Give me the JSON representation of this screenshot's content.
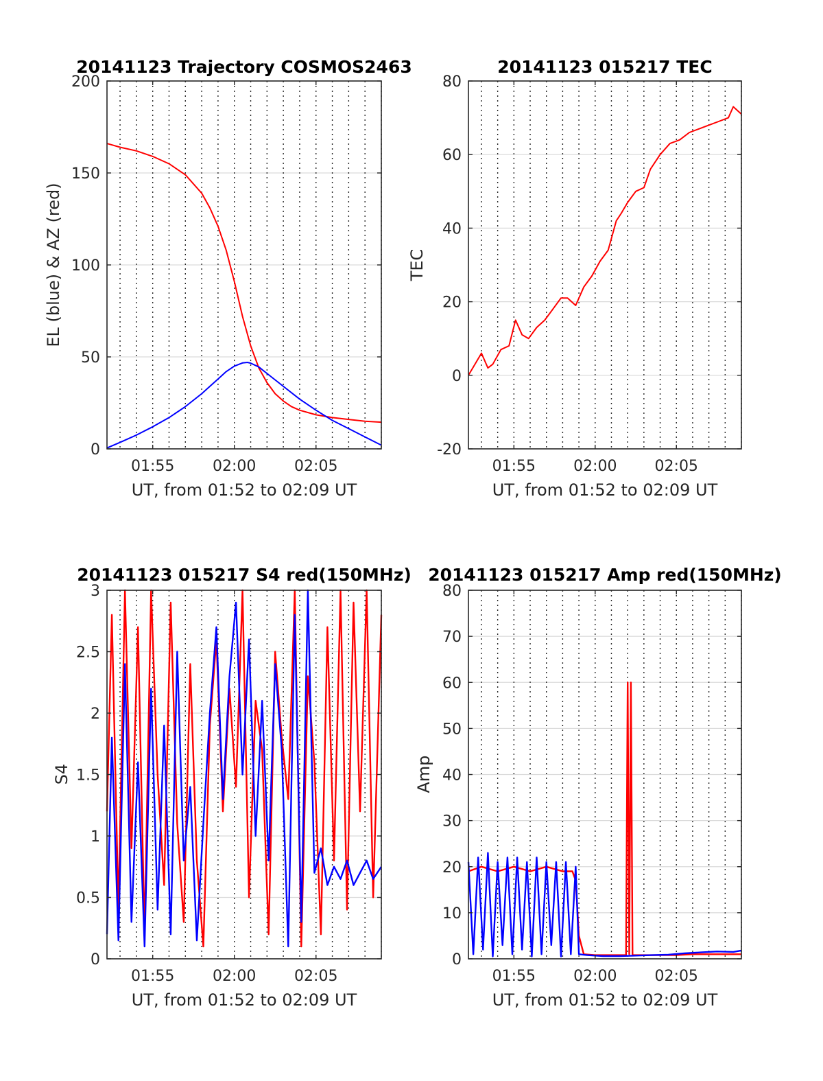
{
  "chart_data": [
    {
      "type": "line",
      "title": "20141123 Trajectory COSMOS2463",
      "xlabel": "UT, from 01:52 to 02:09 UT",
      "ylabel": "EL (blue) & AZ (red)",
      "xlim_min": [
        112.2,
        129
      ],
      "ylim": [
        0,
        200
      ],
      "x_ticks_min": [
        115,
        120,
        125
      ],
      "x_tick_labels": [
        "01:55",
        "02:00",
        "02:05"
      ],
      "y_ticks": [
        0,
        50,
        100,
        150,
        200
      ],
      "y_tick_labels": [
        "0",
        "50",
        "100",
        "150",
        "200"
      ],
      "grid": "on",
      "series": [
        {
          "color": "#ff0000",
          "x_min": [
            112.2,
            113,
            114,
            115,
            116,
            117,
            118,
            118.5,
            119,
            119.5,
            120,
            120.5,
            121,
            121.5,
            122,
            122.5,
            123,
            123.5,
            124,
            125,
            126,
            127,
            128,
            129
          ],
          "values": [
            166,
            164,
            162,
            159,
            155,
            149,
            139,
            131,
            121,
            108,
            91,
            72,
            56,
            44,
            36,
            30,
            26,
            23,
            21,
            18.5,
            17,
            16,
            15,
            14.5
          ]
        },
        {
          "color": "#0000ff",
          "x_min": [
            112.2,
            113,
            114,
            115,
            116,
            117,
            118,
            118.5,
            119,
            119.5,
            120,
            120.5,
            120.8,
            121,
            121.5,
            122,
            122.5,
            123,
            124,
            125,
            126,
            127,
            128,
            129
          ],
          "values": [
            0.5,
            3.5,
            7.5,
            12,
            17,
            23,
            30,
            34,
            38,
            42,
            45,
            46.7,
            47,
            46.6,
            44.5,
            41,
            37.5,
            34,
            27,
            21,
            15.5,
            11,
            6.5,
            2
          ]
        }
      ]
    },
    {
      "type": "line",
      "title": "20141123 015217 TEC",
      "xlabel": "UT, from 01:52 to 02:09 UT",
      "ylabel": "TEC",
      "xlim_min": [
        112.2,
        129
      ],
      "ylim": [
        -20,
        80
      ],
      "x_ticks_min": [
        115,
        120,
        125
      ],
      "x_tick_labels": [
        "01:55",
        "02:00",
        "02:05"
      ],
      "y_ticks": [
        -20,
        0,
        20,
        40,
        60,
        80
      ],
      "y_tick_labels": [
        "-20",
        "0",
        "20",
        "40",
        "60",
        "80"
      ],
      "grid": "on",
      "series": [
        {
          "color": "#ff0000",
          "x_min": [
            112.2,
            112.6,
            113,
            113.4,
            113.7,
            114.2,
            114.7,
            115.1,
            115.5,
            115.9,
            116.4,
            116.9,
            117.4,
            117.9,
            118.3,
            118.8,
            119.3,
            119.8,
            120.3,
            120.8,
            121.3,
            121.6,
            122,
            122.5,
            123,
            123.4,
            124,
            124.6,
            125.2,
            125.8,
            126.4,
            127,
            127.6,
            128.2,
            128.5,
            129
          ],
          "values": [
            0,
            3,
            6,
            2,
            3,
            7,
            8,
            15,
            11,
            10,
            13,
            15,
            18,
            21,
            21,
            19,
            24,
            27,
            31,
            34,
            42,
            44,
            47,
            50,
            51,
            56,
            60,
            63,
            64,
            66,
            67,
            68,
            69,
            70,
            73,
            71
          ]
        }
      ]
    },
    {
      "type": "line",
      "title": "20141123 015217 S4 red(150MHz)",
      "xlabel": "UT, from 01:52 to 02:09 UT",
      "ylabel": "S4",
      "xlim_min": [
        112.2,
        129
      ],
      "ylim": [
        0,
        3
      ],
      "x_ticks_min": [
        115,
        120,
        125
      ],
      "x_tick_labels": [
        "01:55",
        "02:00",
        "02:05"
      ],
      "y_ticks": [
        0,
        0.5,
        1,
        1.5,
        2,
        2.5,
        3
      ],
      "y_tick_labels": [
        "0",
        "0.5",
        "1",
        "1.5",
        "2",
        "2.5",
        "3"
      ],
      "grid": "on",
      "series": [
        {
          "color": "#ff0000",
          "x_min": [
            112.2,
            112.5,
            112.9,
            113.3,
            113.7,
            114.1,
            114.5,
            114.9,
            115.3,
            115.7,
            116.1,
            116.5,
            116.9,
            117.3,
            117.7,
            118.1,
            118.5,
            118.9,
            119.3,
            119.7,
            120.1,
            120.5,
            120.9,
            121.3,
            121.7,
            122.1,
            122.5,
            122.9,
            123.3,
            123.7,
            124.1,
            124.5,
            124.9,
            125.3,
            125.7,
            126.1,
            126.5,
            126.9,
            127.3,
            127.7,
            128.1,
            128.5,
            129
          ],
          "values": [
            1.2,
            2.8,
            0.4,
            3,
            0.9,
            2.7,
            0.2,
            3,
            1.5,
            0.6,
            2.9,
            1.1,
            0.3,
            2.4,
            0.8,
            0.1,
            1.9,
            2.6,
            1.2,
            2.2,
            1.4,
            3,
            0.5,
            2.1,
            1.7,
            0.2,
            2.5,
            1.8,
            1.3,
            3,
            0.1,
            2.3,
            1.6,
            0.2,
            2.7,
            0.8,
            3,
            0.4,
            2.9,
            1.2,
            3,
            0.5,
            2.8
          ]
        },
        {
          "color": "#0000ff",
          "x_min": [
            112.2,
            112.5,
            112.9,
            113.3,
            113.7,
            114.1,
            114.5,
            114.9,
            115.3,
            115.7,
            116.1,
            116.5,
            116.9,
            117.3,
            117.7,
            118.1,
            118.5,
            118.9,
            119.3,
            119.7,
            120.1,
            120.5,
            120.9,
            121.3,
            121.7,
            122.1,
            122.5,
            122.9,
            123.3,
            123.7,
            124.1,
            124.5,
            124.9,
            125.3,
            125.7,
            126.1,
            126.5,
            126.9,
            127.3,
            127.7,
            128.1,
            128.5,
            129
          ],
          "values": [
            0.2,
            1.8,
            0.15,
            2.4,
            0.3,
            1.6,
            0.1,
            2.2,
            0.4,
            1.9,
            0.2,
            2.5,
            0.8,
            1.4,
            0.15,
            1.1,
            2.0,
            2.7,
            1.3,
            2.3,
            2.9,
            1.5,
            2.6,
            1.0,
            2.1,
            0.8,
            2.4,
            1.7,
            0.1,
            2.8,
            0.3,
            3,
            0.7,
            0.9,
            0.6,
            0.75,
            0.65,
            0.8,
            0.6,
            0.7,
            0.8,
            0.65,
            0.75
          ]
        }
      ]
    },
    {
      "type": "line",
      "title": "20141123 015217 Amp red(150MHz)",
      "xlabel": "UT, from 01:52 to 02:09 UT",
      "ylabel": "Amp",
      "xlim_min": [
        112.2,
        129
      ],
      "ylim": [
        0,
        80
      ],
      "x_ticks_min": [
        115,
        120,
        125
      ],
      "x_tick_labels": [
        "01:55",
        "02:00",
        "02:05"
      ],
      "y_ticks": [
        0,
        10,
        20,
        30,
        40,
        50,
        60,
        70,
        80
      ],
      "y_tick_labels": [
        "0",
        "10",
        "20",
        "30",
        "40",
        "50",
        "60",
        "70",
        "80"
      ],
      "grid": "on",
      "series": [
        {
          "color": "#ff0000",
          "x_min": [
            112.2,
            113,
            114,
            115,
            116,
            117,
            118,
            118.6,
            118.8,
            119.0,
            119.3,
            120,
            121,
            121.9,
            122.0,
            122.1,
            122.2,
            122.3,
            123,
            124,
            125,
            126,
            127,
            128,
            129
          ],
          "values": [
            19,
            20,
            19,
            20,
            19,
            20,
            19,
            19,
            17,
            5,
            1,
            0.8,
            0.8,
            0.8,
            60,
            1,
            60,
            0.8,
            0.8,
            0.8,
            0.8,
            1,
            1,
            1,
            1
          ]
        },
        {
          "color": "#0000ff",
          "x_min": [
            112.2,
            112.5,
            112.8,
            113.1,
            113.4,
            113.7,
            114,
            114.3,
            114.6,
            114.9,
            115.2,
            115.5,
            115.8,
            116.1,
            116.4,
            116.7,
            117,
            117.3,
            117.6,
            117.9,
            118.2,
            118.5,
            118.8,
            119.0,
            119.5,
            120.5,
            121.5,
            122.5,
            123.5,
            124.5,
            125.5,
            126.5,
            127.5,
            128.5,
            129
          ],
          "values": [
            21,
            1,
            22,
            2,
            23,
            0.5,
            21,
            3,
            22,
            1,
            22,
            2,
            21,
            0.5,
            22,
            1,
            21,
            3,
            21,
            0.5,
            21,
            1,
            20,
            1,
            0.8,
            0.6,
            0.6,
            0.7,
            0.8,
            0.9,
            1.2,
            1.4,
            1.6,
            1.5,
            1.8
          ]
        }
      ]
    }
  ]
}
